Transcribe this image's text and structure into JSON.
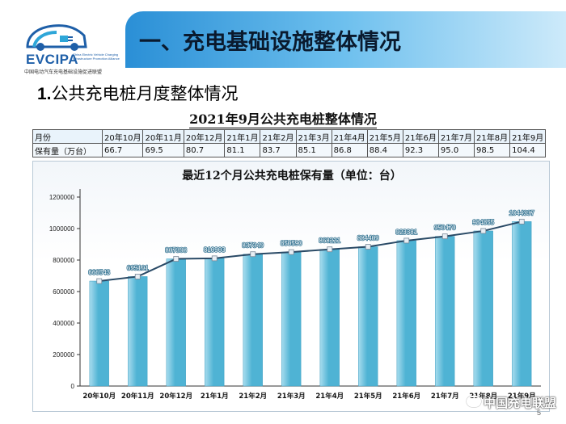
{
  "header": {
    "logo_text": "EVCIPA",
    "logo_sub": "China Electric Vehicle Charging Infrastructure Promotion Alliance",
    "logo_cn": "中国电动汽车充电基础设施促进联盟",
    "title": "一、充电基础设施整体情况"
  },
  "section": {
    "number": "1.",
    "title": "公共充电桩月度整体情况"
  },
  "table": {
    "title": "2021年9月公共充电桩整体情况",
    "row_header_month": "月份",
    "row_header_value": "保有量（万台）",
    "months": [
      "20年10月",
      "20年11月",
      "20年12月",
      "21年1月",
      "21年2月",
      "21年3月",
      "21年4月",
      "21年5月",
      "21年6月",
      "21年7月",
      "21年8月",
      "21年9月"
    ],
    "values": [
      "66.7",
      "69.5",
      "80.7",
      "81.1",
      "83.7",
      "85.1",
      "86.8",
      "88.4",
      "92.3",
      "95.0",
      "98.5",
      "104.4"
    ]
  },
  "chart_data": {
    "type": "bar",
    "title": "最近12个月公共充电桩保有量（单位：台）",
    "categories": [
      "20年10月",
      "20年11月",
      "20年12月",
      "21年1月",
      "21年2月",
      "21年3月",
      "21年4月",
      "21年5月",
      "21年6月",
      "21年7月",
      "21年8月",
      "21年9月"
    ],
    "values": [
      666543,
      695191,
      807398,
      810903,
      837349,
      850590,
      868221,
      884409,
      923381,
      950470,
      984855,
      1044337
    ],
    "overlay": "line",
    "ylim": [
      0,
      1200000
    ],
    "yticks": [
      "0",
      "200000",
      "400000",
      "600000",
      "800000",
      "1000000",
      "1200000"
    ],
    "grid": false,
    "legend": "none",
    "colors": {
      "bar": "#4fb3d4",
      "bar_light": "#a8dcee",
      "line": "#2a4a66"
    }
  },
  "footer": {
    "page_number": "5",
    "watermark": "中国充电联盟"
  }
}
